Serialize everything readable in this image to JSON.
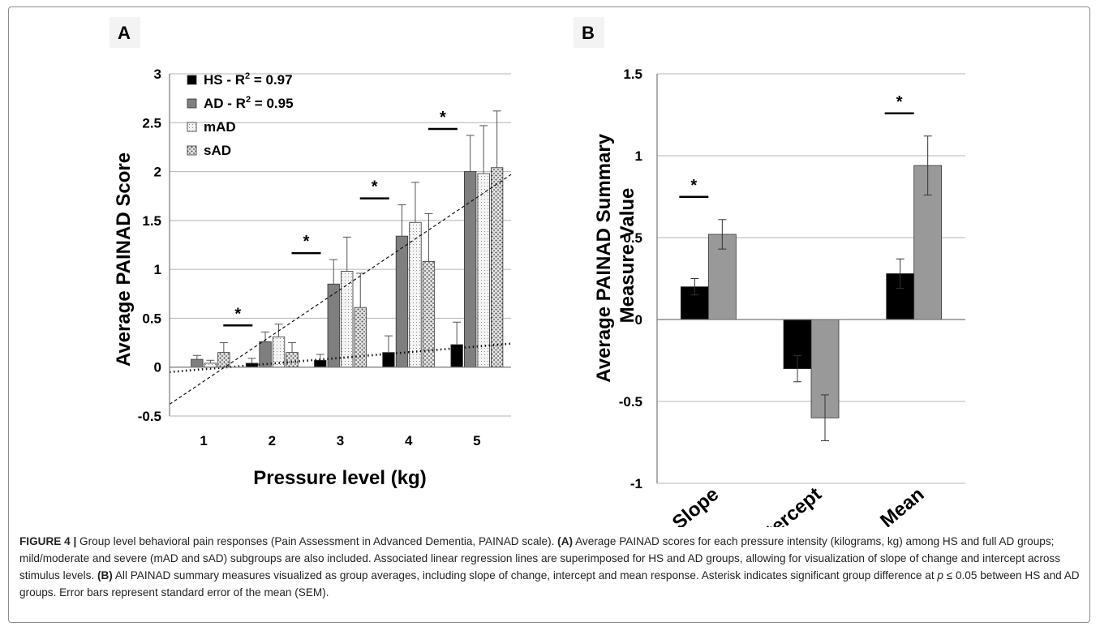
{
  "panels": {
    "a": "A",
    "b": "B"
  },
  "chart_data": [
    {
      "type": "bar",
      "panel": "A",
      "ylabel": "Average PAINAD Score",
      "xlabel": "Pressure level (kg)",
      "ylim": [
        -0.5,
        3
      ],
      "yticks": [
        -0.5,
        0,
        0.5,
        1,
        1.5,
        2,
        2.5,
        3
      ],
      "ytick_labels": [
        "-0.5",
        "0",
        "0.5",
        "1",
        "1.5",
        "2",
        "2.5",
        "3"
      ],
      "categories": [
        "1",
        "2",
        "3",
        "4",
        "5"
      ],
      "grid": true,
      "legend_position": "top-left",
      "legend": [
        {
          "key": "HS",
          "label_main": "HS -  R",
          "sup": "2",
          "label_tail": " = 0.97"
        },
        {
          "key": "AD",
          "label_main": "AD -  R",
          "sup": "2",
          "label_tail": " = 0.95"
        },
        {
          "key": "mAD",
          "label_main": "mAD",
          "sup": "",
          "label_tail": ""
        },
        {
          "key": "sAD",
          "label_main": "sAD",
          "sup": "",
          "label_tail": ""
        }
      ],
      "series": [
        {
          "key": "HS",
          "color": "#000000",
          "values": [
            0.0,
            0.04,
            0.07,
            0.15,
            0.23
          ],
          "errors": [
            0.0,
            0.05,
            0.06,
            0.17,
            0.23
          ]
        },
        {
          "key": "AD",
          "color": "#7f7f7f",
          "values": [
            0.08,
            0.26,
            0.85,
            1.34,
            2.0
          ],
          "errors": [
            0.04,
            0.1,
            0.25,
            0.32,
            0.37
          ]
        },
        {
          "key": "mAD",
          "color": "#efefef",
          "pattern": "fine-dots",
          "values": [
            0.04,
            0.31,
            0.98,
            1.48,
            1.98
          ],
          "errors": [
            0.03,
            0.13,
            0.35,
            0.41,
            0.49
          ]
        },
        {
          "key": "sAD",
          "color": "#d6d6d6",
          "pattern": "coarse-dots",
          "values": [
            0.15,
            0.15,
            0.61,
            1.08,
            2.04
          ],
          "errors": [
            0.1,
            0.1,
            0.35,
            0.49,
            0.58
          ]
        }
      ],
      "trendlines": [
        {
          "series": "HS",
          "style": "dotted",
          "y_at_left": -0.05,
          "y_at_right": 0.24
        },
        {
          "series": "AD",
          "style": "dashed",
          "y_at_left": -0.38,
          "y_at_right": 1.97
        }
      ],
      "significance": [
        {
          "category": "2",
          "label": "*"
        },
        {
          "category": "3",
          "label": "*"
        },
        {
          "category": "4",
          "label": "*"
        },
        {
          "category": "5",
          "label": "*"
        }
      ]
    },
    {
      "type": "bar",
      "panel": "B",
      "ylabel_lines": [
        "Average PAINAD Summary",
        "Measure Value"
      ],
      "ylim": [
        -1,
        1.5
      ],
      "yticks": [
        -1,
        -0.5,
        0,
        0.5,
        1,
        1.5
      ],
      "ytick_labels": [
        "-1",
        "-0.5",
        "0",
        "0.5",
        "1",
        "1.5"
      ],
      "categories": [
        "Slope",
        "Intercept",
        "Mean"
      ],
      "grid": true,
      "series": [
        {
          "key": "HS",
          "color": "#000000",
          "values": [
            0.2,
            -0.3,
            0.28
          ],
          "errors": [
            0.05,
            0.08,
            0.09
          ]
        },
        {
          "key": "AD",
          "color": "#999999",
          "values": [
            0.52,
            -0.6,
            0.94
          ],
          "errors": [
            0.09,
            0.14,
            0.18
          ]
        }
      ],
      "significance": [
        {
          "category": "Slope",
          "label": "*"
        },
        {
          "category": "Mean",
          "label": "*"
        }
      ]
    }
  ],
  "caption": {
    "figure_label": "FIGURE 4 |",
    "intro": " Group level behavioral pain responses (Pain Assessment in Advanced Dementia, PAINAD scale). ",
    "a_label": "(A)",
    "a_text": " Average PAINAD scores for each pressure intensity (kilograms, kg) among HS and full AD groups; mild/moderate and severe (mAD and sAD) subgroups are also included. Associated linear regression lines are superimposed for HS and AD groups, allowing for visualization of slope of change and intercept across stimulus levels. ",
    "b_label": "(B)",
    "b_text": " All PAINAD summary measures visualized as group averages, including slope of change, intercept and mean response. Asterisk indicates significant group difference at ",
    "p_symbol": "p",
    "p_tail": " ≤ 0.05 between HS and AD groups. Error bars represent standard error of the mean (SEM)."
  }
}
